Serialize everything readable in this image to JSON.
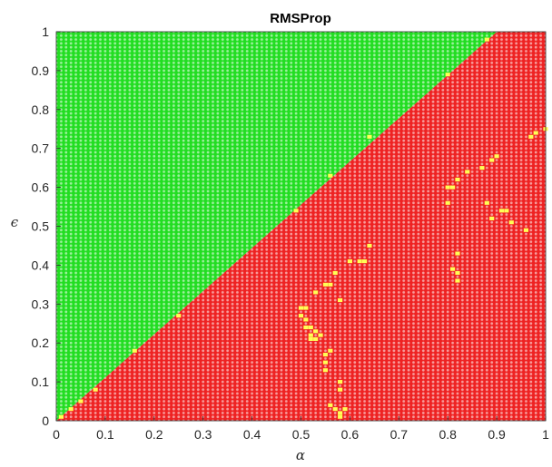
{
  "chart_data": {
    "type": "scatter",
    "title": "RMSProp",
    "xlabel": "α",
    "ylabel": "ϵ",
    "xlim": [
      0,
      1
    ],
    "ylim": [
      0,
      1
    ],
    "grid": false,
    "grid_resolution": 0.01,
    "colors": {
      "region_above": "#22dd22",
      "region_below": "#ee2222",
      "exception": "#ffff55",
      "axis": "#262626"
    },
    "boundary": {
      "type": "line",
      "slope": 1.111,
      "intercept": 0.0
    },
    "xticks": [
      0,
      0.1,
      0.2,
      0.3,
      0.4,
      0.5,
      0.6,
      0.7,
      0.8,
      0.9,
      1
    ],
    "xtick_labels": [
      "0",
      "0.1",
      "0.2",
      "0.3",
      "0.4",
      "0.5",
      "0.6",
      "0.7",
      "0.8",
      "0.9",
      "1"
    ],
    "yticks": [
      0,
      0.1,
      0.2,
      0.3,
      0.4,
      0.5,
      0.6,
      0.7,
      0.8,
      0.9,
      1
    ],
    "ytick_labels": [
      "0",
      "0.1",
      "0.2",
      "0.3",
      "0.4",
      "0.5",
      "0.6",
      "0.7",
      "0.8",
      "0.9",
      "1"
    ],
    "exception_points": [
      [
        0.01,
        0.01
      ],
      [
        0.03,
        0.03
      ],
      [
        0.05,
        0.05
      ],
      [
        0.08,
        0.08
      ],
      [
        0.16,
        0.18
      ],
      [
        0.25,
        0.27
      ],
      [
        0.49,
        0.54
      ],
      [
        0.56,
        0.63
      ],
      [
        0.64,
        0.73
      ],
      [
        0.8,
        0.89
      ],
      [
        0.88,
        0.98
      ],
      [
        0.5,
        0.29
      ],
      [
        0.51,
        0.29
      ],
      [
        0.5,
        0.27
      ],
      [
        0.51,
        0.26
      ],
      [
        0.51,
        0.24
      ],
      [
        0.52,
        0.24
      ],
      [
        0.52,
        0.22
      ],
      [
        0.53,
        0.23
      ],
      [
        0.53,
        0.21
      ],
      [
        0.54,
        0.22
      ],
      [
        0.52,
        0.21
      ],
      [
        0.53,
        0.33
      ],
      [
        0.55,
        0.35
      ],
      [
        0.56,
        0.35
      ],
      [
        0.57,
        0.38
      ],
      [
        0.58,
        0.31
      ],
      [
        0.55,
        0.17
      ],
      [
        0.56,
        0.18
      ],
      [
        0.55,
        0.15
      ],
      [
        0.55,
        0.13
      ],
      [
        0.58,
        0.1
      ],
      [
        0.58,
        0.08
      ],
      [
        0.56,
        0.04
      ],
      [
        0.57,
        0.03
      ],
      [
        0.58,
        0.02
      ],
      [
        0.59,
        0.03
      ],
      [
        0.58,
        0.01
      ],
      [
        0.6,
        0.41
      ],
      [
        0.62,
        0.41
      ],
      [
        0.63,
        0.41
      ],
      [
        0.64,
        0.45
      ],
      [
        0.8,
        0.6
      ],
      [
        0.81,
        0.6
      ],
      [
        0.8,
        0.56
      ],
      [
        0.82,
        0.62
      ],
      [
        0.81,
        0.39
      ],
      [
        0.82,
        0.38
      ],
      [
        0.82,
        0.36
      ],
      [
        0.82,
        0.43
      ],
      [
        0.84,
        0.64
      ],
      [
        0.87,
        0.65
      ],
      [
        0.88,
        0.56
      ],
      [
        0.89,
        0.52
      ],
      [
        0.89,
        0.67
      ],
      [
        0.9,
        0.68
      ],
      [
        0.91,
        0.54
      ],
      [
        0.92,
        0.54
      ],
      [
        0.93,
        0.51
      ],
      [
        0.96,
        0.49
      ],
      [
        0.97,
        0.73
      ],
      [
        0.98,
        0.74
      ],
      [
        1.0,
        0.75
      ]
    ]
  }
}
